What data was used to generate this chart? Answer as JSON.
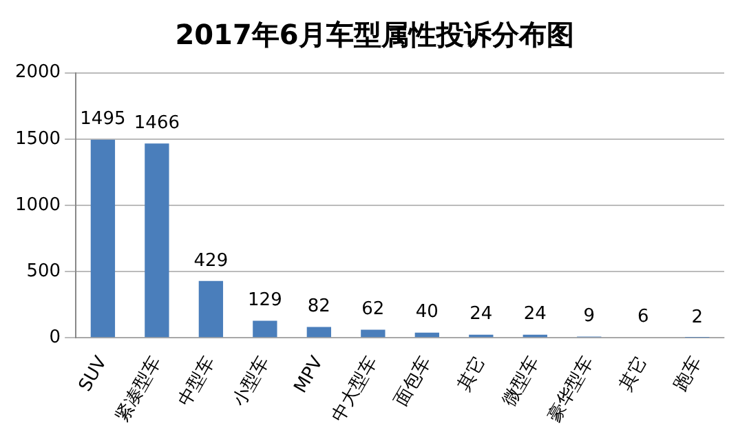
{
  "chart_data": {
    "type": "bar",
    "title": "2017年6月车型属性投诉分布图",
    "categories": [
      "SUV",
      "紧凑型车",
      "中型车",
      "小型车",
      "MPV",
      "中大型车",
      "面包车",
      "其它",
      "微型车",
      "豪华型车",
      "其它",
      "跑车"
    ],
    "values": [
      1495,
      1466,
      429,
      129,
      82,
      62,
      40,
      24,
      24,
      9,
      6,
      2
    ],
    "color": "#4a7ebb",
    "ylim": [
      0,
      2000
    ],
    "yticks": [
      0,
      500,
      1000,
      1500,
      2000
    ],
    "grid": "y",
    "data_labels": true
  }
}
